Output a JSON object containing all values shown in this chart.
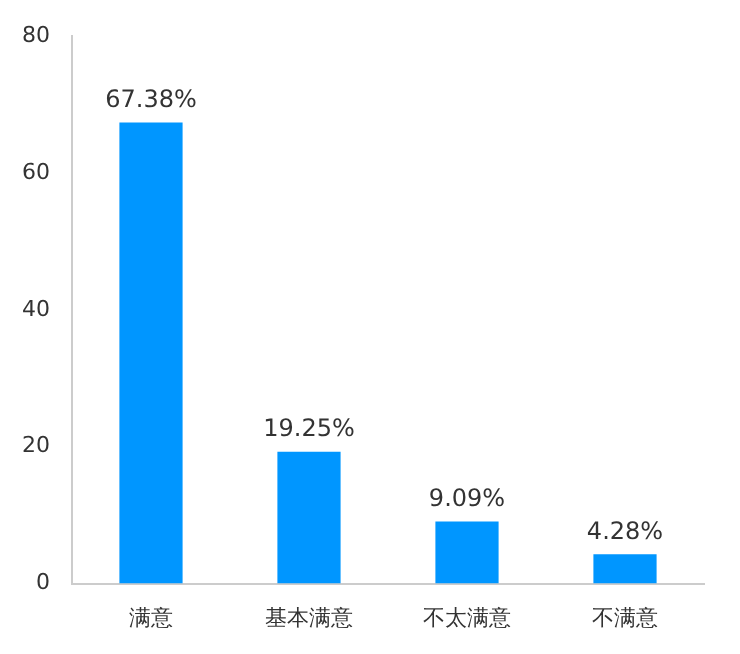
{
  "chart_data": {
    "type": "bar",
    "categories": [
      "满意",
      "基本满意",
      "不太满意",
      "不满意"
    ],
    "values": [
      67.38,
      19.25,
      9.09,
      4.28
    ],
    "value_labels": [
      "67.38%",
      "19.25%",
      "9.09%",
      "4.28%"
    ],
    "color": "#0096ff",
    "ylim": [
      0,
      80
    ],
    "yticks": [
      0,
      20,
      40,
      60,
      80
    ],
    "grid": false,
    "legend": false
  }
}
